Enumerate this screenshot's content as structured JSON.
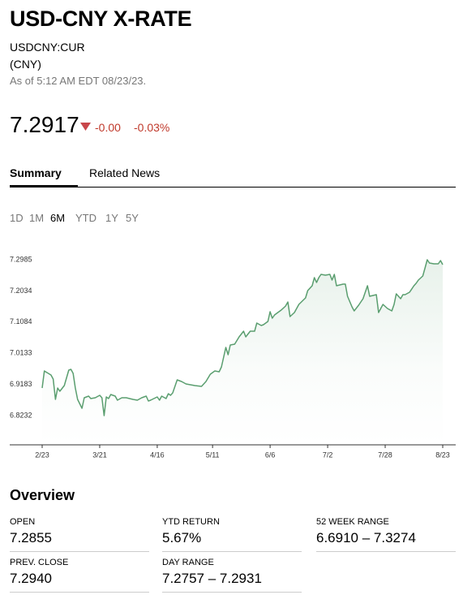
{
  "header": {
    "title": "USD-CNY X-RATE",
    "ticker": "USDCNY:CUR",
    "currency": "(CNY)",
    "as_of": "As of 5:12 AM EDT 08/23/23.",
    "price": "7.2917",
    "change": "-0.00",
    "change_pct": "-0.03%"
  },
  "tabs": {
    "items": [
      "Summary",
      "Related News"
    ],
    "active": "Summary"
  },
  "ranges": {
    "items": [
      "1D",
      "1M",
      "6M",
      "YTD",
      "1Y",
      "5Y"
    ],
    "active": "6M"
  },
  "chart_data": {
    "type": "line",
    "x": [
      "2/23",
      "2/24",
      "2/27",
      "2/28",
      "3/1",
      "3/2",
      "3/3",
      "3/5",
      "3/7",
      "3/8",
      "3/9",
      "3/10",
      "3/11",
      "3/13",
      "3/14",
      "3/16",
      "3/17",
      "3/19",
      "3/21",
      "3/22",
      "3/23",
      "3/24",
      "3/25",
      "3/26",
      "3/28",
      "3/29",
      "3/31",
      "4/2",
      "4/5",
      "4/7",
      "4/9",
      "4/11",
      "4/12",
      "4/13",
      "4/16",
      "4/17",
      "4/18",
      "4/20",
      "4/21",
      "4/22",
      "4/23",
      "4/25",
      "4/27",
      "4/29",
      "5/3",
      "5/6",
      "5/8",
      "5/10",
      "5/12",
      "5/14",
      "5/15",
      "5/17",
      "5/18",
      "5/19",
      "5/21",
      "5/23",
      "5/25",
      "5/26",
      "5/28",
      "5/30",
      "5/31",
      "6/2",
      "6/3",
      "6/5",
      "6/6",
      "6/7",
      "6/8",
      "6/10",
      "6/11",
      "6/13",
      "6/14",
      "6/15",
      "6/17",
      "6/19",
      "6/22",
      "6/23",
      "6/25",
      "6/26",
      "6/27",
      "6/28",
      "6/29",
      "7/1",
      "7/3",
      "7/4",
      "7/5",
      "7/6",
      "7/9",
      "7/10",
      "7/11",
      "7/13",
      "7/14",
      "7/16",
      "7/18",
      "7/20",
      "7/21",
      "7/24",
      "7/25",
      "7/27",
      "7/29",
      "7/31",
      "8/1",
      "8/2",
      "8/4",
      "8/5",
      "8/6",
      "8/8",
      "8/10",
      "8/11",
      "8/12",
      "8/14",
      "8/15",
      "8/16",
      "8/17",
      "8/19",
      "8/21",
      "8/22",
      "8/23"
    ],
    "series": [
      {
        "color": "#5a9e6f",
        "values": [
          6.9073,
          6.9593,
          6.9469,
          6.9346,
          6.8727,
          6.9073,
          6.8974,
          6.9147,
          6.9618,
          6.9643,
          6.9519,
          6.9073,
          6.8727,
          6.8454,
          6.8776,
          6.8826,
          6.8751,
          6.8776,
          6.885,
          6.8776,
          6.8231,
          6.8801,
          6.8751,
          6.8875,
          6.8826,
          6.8702,
          6.8776,
          6.8776,
          6.8727,
          6.8702,
          6.8776,
          6.8826,
          6.8677,
          6.8702,
          6.8801,
          6.8702,
          6.8826,
          6.8751,
          6.89,
          6.885,
          6.8925,
          6.9321,
          6.9271,
          6.9197,
          6.9147,
          6.9123,
          6.9271,
          6.9494,
          6.9593,
          6.9568,
          6.9717,
          7.0311,
          7.0088,
          7.0385,
          7.041,
          7.0633,
          7.0806,
          7.0633,
          7.0806,
          7.0806,
          7.1054,
          7.098,
          7.1004,
          7.1104,
          7.1401,
          7.1203,
          7.1302,
          7.1401,
          7.145,
          7.1574,
          7.1698,
          7.1252,
          7.1376,
          7.1623,
          7.1822,
          7.2044,
          7.2193,
          7.2441,
          7.2292,
          7.2441,
          7.254,
          7.2515,
          7.254,
          7.2366,
          7.254,
          7.2193,
          7.2242,
          7.2242,
          7.1871,
          7.1549,
          7.1425,
          7.1599,
          7.1797,
          7.2193,
          7.1871,
          7.1921,
          7.1376,
          7.1623,
          7.15,
          7.1425,
          7.1623,
          7.1945,
          7.1797,
          7.1921,
          7.1921,
          7.1995,
          7.2193,
          7.2267,
          7.2366,
          7.249,
          7.2738,
          7.2985,
          7.2886,
          7.2861,
          7.2861,
          7.2961,
          7.2837
        ]
      }
    ],
    "xlim": [
      "2/23",
      "8/23"
    ],
    "xticks": [
      "2/23",
      "3/21",
      "4/16",
      "5/11",
      "6/6",
      "7/2",
      "7/28",
      "8/23"
    ],
    "ylim": [
      6.734,
      7.348
    ],
    "yticks": [
      6.8232,
      6.9183,
      7.0133,
      7.1084,
      7.2034,
      7.2985
    ]
  },
  "overview": {
    "title": "Overview",
    "items": [
      {
        "label": "OPEN",
        "value": "7.2855"
      },
      {
        "label": "YTD RETURN",
        "value": "5.67%"
      },
      {
        "label": "52 WEEK RANGE",
        "value": "6.6910 – 7.3274"
      },
      {
        "label": "PREV. CLOSE",
        "value": "7.2940"
      },
      {
        "label": "DAY RANGE",
        "value": "7.2757 – 7.2931"
      }
    ]
  }
}
